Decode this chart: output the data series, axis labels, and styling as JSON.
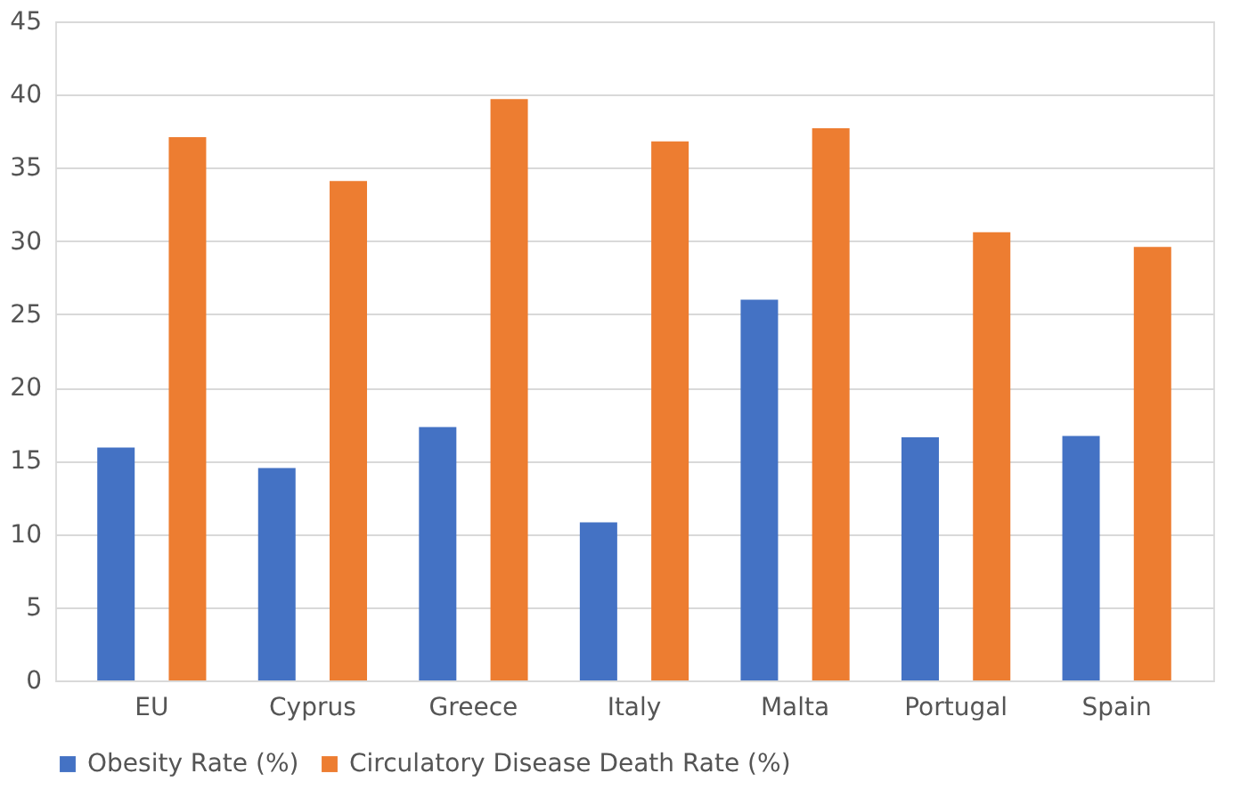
{
  "chart_data": {
    "type": "bar",
    "categories": [
      "EU",
      "Cyprus",
      "Greece",
      "Italy",
      "Malta",
      "Portugal",
      "Spain"
    ],
    "series": [
      {
        "name": "Obesity Rate (%)",
        "color": "#4472c4",
        "values": [
          15.9,
          14.5,
          17.3,
          10.8,
          26.0,
          16.6,
          16.7
        ]
      },
      {
        "name": "Circulatory Disease Death Rate (%)",
        "color": "#ed7d31",
        "values": [
          37.1,
          34.1,
          39.7,
          36.8,
          37.7,
          30.6,
          29.6
        ]
      }
    ],
    "ylim": [
      0,
      45
    ],
    "yticks": [
      0,
      5,
      10,
      15,
      20,
      25,
      30,
      35,
      40,
      45
    ],
    "grid": "y",
    "legend": "bottom"
  }
}
